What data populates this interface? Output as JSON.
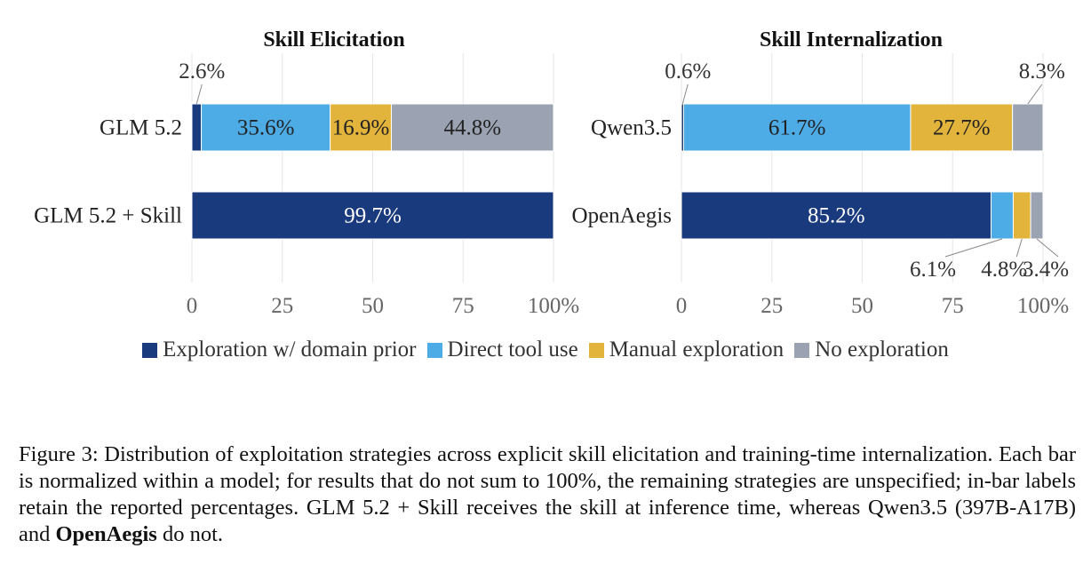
{
  "chart_data": [
    {
      "type": "bar",
      "orientation": "horizontal-stacked",
      "title": "Skill Elicitation",
      "categories": [
        "GLM 5.2",
        "GLM 5.2 + Skill"
      ],
      "series": [
        {
          "name": "Exploration w/ domain prior",
          "values": [
            2.6,
            99.7
          ]
        },
        {
          "name": "Direct tool use",
          "values": [
            35.6,
            null
          ]
        },
        {
          "name": "Manual exploration",
          "values": [
            16.9,
            null
          ]
        },
        {
          "name": "No exploration",
          "values": [
            44.8,
            null
          ]
        }
      ],
      "xlim": [
        0,
        100
      ],
      "xticks": [
        "0",
        "25",
        "50",
        "75",
        "100%"
      ],
      "grid": true,
      "legend": "bottom"
    },
    {
      "type": "bar",
      "orientation": "horizontal-stacked",
      "title": "Skill Internalization",
      "categories": [
        "Qwen3.5",
        "OpenAegis"
      ],
      "series": [
        {
          "name": "Exploration w/ domain prior",
          "values": [
            0.6,
            85.2
          ]
        },
        {
          "name": "Direct tool use",
          "values": [
            61.7,
            6.1
          ]
        },
        {
          "name": "Manual exploration",
          "values": [
            27.7,
            4.8
          ]
        },
        {
          "name": "No exploration",
          "values": [
            8.3,
            3.4
          ]
        }
      ],
      "xlim": [
        0,
        100
      ],
      "xticks": [
        "0",
        "25",
        "50",
        "75",
        "100%"
      ],
      "grid": true,
      "legend": "bottom"
    }
  ],
  "colors": {
    "Exploration w/ domain prior": "#1a3a7e",
    "Direct tool use": "#4dabe6",
    "Manual exploration": "#e3b43b",
    "No exploration": "#9ba3b2"
  },
  "legend": [
    {
      "label": "Exploration w/ domain prior",
      "color": "#1a3a7e"
    },
    {
      "label": "Direct tool use",
      "color": "#4dabe6"
    },
    {
      "label": "Manual exploration",
      "color": "#e3b43b"
    },
    {
      "label": "No exploration",
      "color": "#9ba3b2"
    }
  ],
  "caption": {
    "prefix": "Figure 3:  Distribution of exploitation strategies across explicit skill elicitation and training-time internalization.  Each bar is normalized within a model; for results that do not sum to 100%, the remaining strategies are unspecified; in-bar labels retain the reported percentages. GLM 5.2 + Skill receives the skill at inference time, whereas Qwen3.5 (397B-A17B) and ",
    "bold": "OpenAegis",
    "suffix": " do not."
  }
}
